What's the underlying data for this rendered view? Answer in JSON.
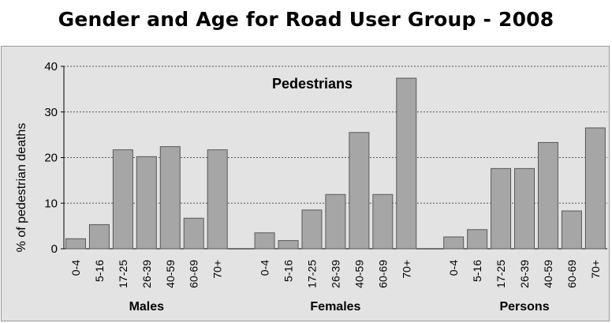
{
  "chart_data": {
    "type": "bar",
    "title": "Gender and Age for Road User Group - 2008",
    "subtitle": "Pedestrians",
    "ylabel": "%  of pedestrian deaths",
    "xlabel": "",
    "ylim": [
      0,
      40
    ],
    "yticks": [
      0,
      10,
      20,
      30,
      40
    ],
    "grid": true,
    "categories": [
      "0-4",
      "5-16",
      "17-25",
      "26-39",
      "40-59",
      "60-69",
      "70+"
    ],
    "groups": [
      {
        "name": "Males",
        "values": [
          2.2,
          5.3,
          21.7,
          20.2,
          22.4,
          6.7,
          21.7
        ]
      },
      {
        "name": "Females",
        "values": [
          3.5,
          1.8,
          8.5,
          11.9,
          25.5,
          11.9,
          37.4
        ]
      },
      {
        "name": "Persons",
        "values": [
          2.6,
          4.2,
          17.6,
          17.6,
          23.3,
          8.3,
          26.5
        ]
      }
    ],
    "bar_color": "#a6a6a6",
    "bar_edge_color": "#595959",
    "background_color": "#e3e3e3",
    "grid_color": "#555555"
  }
}
